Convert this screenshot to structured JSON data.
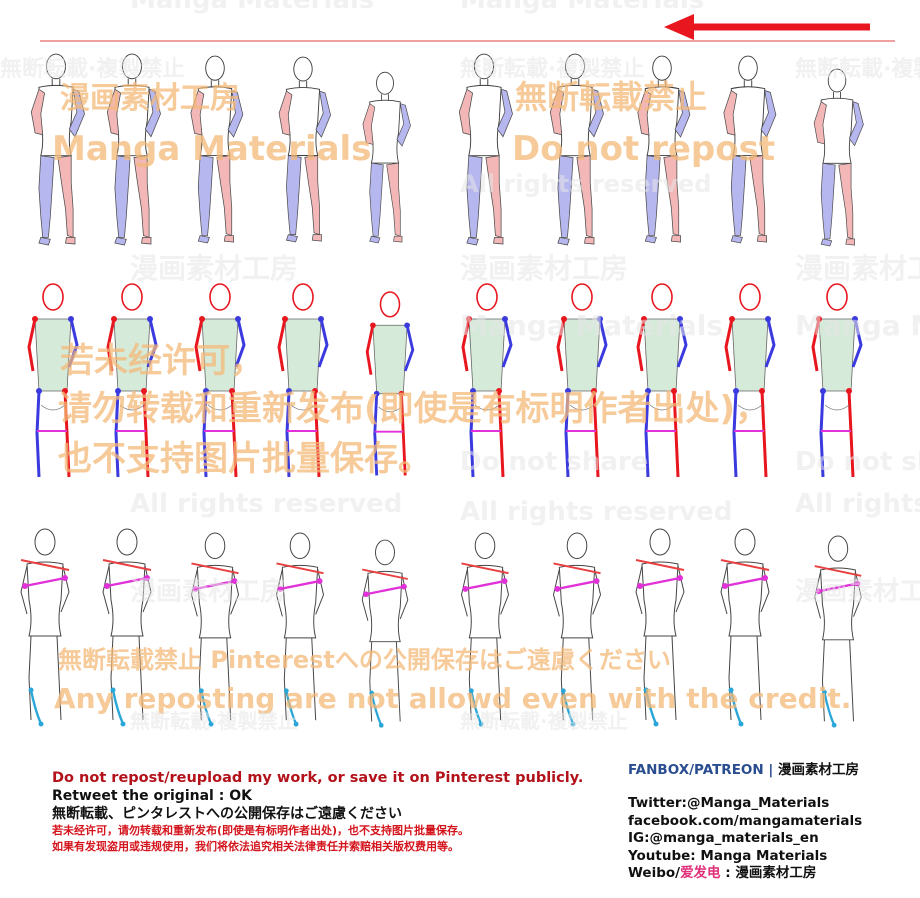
{
  "watermarks": {
    "studio_jp": "漫画素材工房",
    "studio_en": "Manga Materials",
    "no_reprint_jp": "無断転載禁止",
    "no_repost_jp2": "無断転載·複製禁止",
    "do_not_repost": "Do not repost",
    "do_not_share": "Do not share",
    "all_rights": "All rights reserved",
    "cn_line1": "若未经许可，",
    "cn_line2": "请勿转载和重新发布(即使是有标明作者出处)，",
    "cn_line3": "也不支持图片批量保存。",
    "pinterest_jp": "無断転載禁止 Pinterestへの公開保存はご遠慮ください",
    "any_reposting": "Any reposting are not allowd even with the credit."
  },
  "colors": {
    "arrow_red": "#e8161e",
    "left_limb_red": "#e84040",
    "right_limb_blue": "#3a3adf",
    "pink_limb_fill": "#f3b4b4",
    "blue_limb_fill": "#b4b4f0",
    "torso_green": "#b9dcbf",
    "hip_magenta": "#e032d8",
    "foot_cyan": "#2aa6d8",
    "watermark_orange": "#f3b877"
  },
  "footer": {
    "left": {
      "line1": "Do not repost/reupload my work, or save it on Pinterest publicly.",
      "line2": "Retweet the original : OK",
      "line3": "無断転載、ピンタレストへの公開保存はご遠慮ください",
      "line4": "若未经许可，请勿转载和重新发布(即使是有标明作者出处)，也不支持图片批量保存。",
      "line5": "如果有发现盗用或违规使用，我们将依法追究相关法律责任并索赔相关版权费用等。"
    },
    "right": {
      "header_brand": "FANBOX/PATREON",
      "header_sep": " | ",
      "header_name": "漫画素材工房",
      "twitter": "Twitter:@Manga_Materials",
      "facebook": "facebook.com/mangamaterials",
      "ig": "IG:@manga_materials_en",
      "youtube": "Youtube: Manga Materials",
      "weibo_prefix": "Weibo/",
      "weibo_accent": "爱发电",
      "weibo_suffix": " : 漫画素材工房"
    }
  }
}
